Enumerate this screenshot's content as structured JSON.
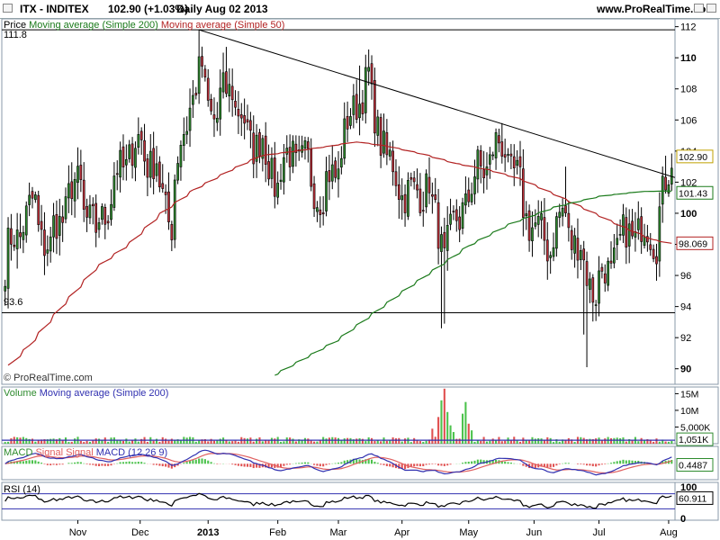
{
  "header": {
    "symbol": "ITX - INDITEX",
    "price": "102.90 (+1.03%)",
    "period": "Daily  Aug 02 2013",
    "site": "www.ProRealTime.com"
  },
  "watermark": "© ProRealTime.com",
  "colors": {
    "bull": "#2e8b2e",
    "bear": "#c0303a",
    "ma200": "#1a7a1a",
    "ma50": "#b22222",
    "macd": "#3030b0",
    "signal": "#e06060",
    "rsi": "#000000"
  },
  "chart_data": [
    {
      "type": "candlestick",
      "panel": "price",
      "legend": [
        {
          "text": "Price",
          "color": "#000000"
        },
        {
          "text": "Moving average (Simple 200)",
          "color": "#1a7a1a"
        },
        {
          "text": "Moving average (Simple 50)",
          "color": "#b22222"
        }
      ],
      "ylim": [
        89,
        112.5
      ],
      "y_ticks": [
        90,
        92,
        94,
        96,
        98,
        100,
        102,
        104,
        106,
        108,
        110,
        112
      ],
      "y_tick_labels": [
        "90",
        "92",
        "94",
        "96",
        "98",
        "100",
        "102",
        "104",
        "106",
        "108",
        "110",
        "112"
      ],
      "last_price": "102.90",
      "ma200_value": "101.43",
      "ma50_value": "98.069",
      "horizontal_lines": [
        {
          "label": "111.8",
          "value": 111.8
        },
        {
          "label": "93.6",
          "value": 93.6
        }
      ],
      "trendline": [
        {
          "date": "2012-12-27",
          "value": 111.8
        },
        {
          "date": "2013-08-06",
          "value": 102.3
        }
      ],
      "price_path": [
        [
          "2012-09-28",
          96.5
        ],
        [
          "2012-10-05",
          99.0
        ],
        [
          "2012-10-12",
          100.5
        ],
        [
          "2012-10-19",
          97.5
        ],
        [
          "2012-10-26",
          100.5
        ],
        [
          "2012-11-02",
          102.0
        ],
        [
          "2012-11-09",
          98.5
        ],
        [
          "2012-11-16",
          101.0
        ],
        [
          "2012-11-23",
          103.5
        ],
        [
          "2012-11-30",
          104.5
        ],
        [
          "2012-12-07",
          103.0
        ],
        [
          "2012-12-14",
          99.5
        ],
        [
          "2012-12-21",
          106.0
        ],
        [
          "2012-12-28",
          109.0
        ],
        [
          "2013-01-04",
          106.0
        ],
        [
          "2013-01-11",
          108.5
        ],
        [
          "2013-01-18",
          105.0
        ],
        [
          "2013-01-25",
          104.5
        ],
        [
          "2013-02-01",
          102.0
        ],
        [
          "2013-02-08",
          104.0
        ],
        [
          "2013-02-15",
          103.0
        ],
        [
          "2013-02-22",
          101.0
        ],
        [
          "2013-03-01",
          103.0
        ],
        [
          "2013-03-08",
          106.5
        ],
        [
          "2013-03-15",
          108.5
        ],
        [
          "2013-03-22",
          104.5
        ],
        [
          "2013-03-29",
          102.0
        ],
        [
          "2013-04-05",
          101.0
        ],
        [
          "2013-04-12",
          102.0
        ],
        [
          "2013-04-19",
          97.5
        ],
        [
          "2013-04-26",
          99.5
        ],
        [
          "2013-05-03",
          102.0
        ],
        [
          "2013-05-10",
          103.5
        ],
        [
          "2013-05-17",
          104.5
        ],
        [
          "2013-05-24",
          101.5
        ],
        [
          "2013-05-31",
          99.0
        ],
        [
          "2013-06-07",
          98.0
        ],
        [
          "2013-06-14",
          100.0
        ],
        [
          "2013-06-21",
          97.5
        ],
        [
          "2013-06-28",
          95.0
        ],
        [
          "2013-07-05",
          96.5
        ],
        [
          "2013-07-12",
          98.5
        ],
        [
          "2013-07-19",
          99.0
        ],
        [
          "2013-07-26",
          98.5
        ],
        [
          "2013-08-02",
          102.9
        ]
      ],
      "ma200_path": [
        [
          "2013-01-30",
          89.5
        ],
        [
          "2013-03-01",
          91.8
        ],
        [
          "2013-04-01",
          95.0
        ],
        [
          "2013-05-01",
          97.9
        ],
        [
          "2013-05-20",
          99.3
        ],
        [
          "2013-06-10",
          100.4
        ],
        [
          "2013-07-01",
          101.1
        ],
        [
          "2013-07-20",
          101.4
        ],
        [
          "2013-08-02",
          101.43
        ]
      ],
      "ma50_path": [
        [
          "2012-09-28",
          89.8
        ],
        [
          "2012-10-10",
          91.5
        ],
        [
          "2012-10-25",
          94.0
        ],
        [
          "2012-11-10",
          96.5
        ],
        [
          "2012-11-25",
          98.0
        ],
        [
          "2012-12-10",
          100.0
        ],
        [
          "2012-12-25",
          101.5
        ],
        [
          "2013-01-10",
          102.7
        ],
        [
          "2013-01-25",
          103.7
        ],
        [
          "2013-02-10",
          104.0
        ],
        [
          "2013-02-25",
          104.3
        ],
        [
          "2013-03-10",
          104.6
        ],
        [
          "2013-03-25",
          104.3
        ],
        [
          "2013-04-10",
          103.8
        ],
        [
          "2013-04-25",
          103.2
        ],
        [
          "2013-05-10",
          102.8
        ],
        [
          "2013-05-25",
          102.2
        ],
        [
          "2013-06-10",
          101.2
        ],
        [
          "2013-06-25",
          100.2
        ],
        [
          "2013-07-10",
          99.2
        ],
        [
          "2013-07-25",
          98.3
        ],
        [
          "2013-08-02",
          98.069
        ]
      ],
      "x_ticks": [
        {
          "label": "Nov",
          "date": "2012-11-01"
        },
        {
          "label": "Dec",
          "date": "2012-12-01"
        },
        {
          "label": "2013",
          "date": "2013-01-01"
        },
        {
          "label": "Feb",
          "date": "2013-02-01"
        },
        {
          "label": "Mar",
          "date": "2013-03-01"
        },
        {
          "label": "Apr",
          "date": "2013-04-01"
        },
        {
          "label": "May",
          "date": "2013-05-01"
        },
        {
          "label": "Jun",
          "date": "2013-06-01"
        },
        {
          "label": "Jul",
          "date": "2013-07-01"
        },
        {
          "label": "Aug",
          "date": "2013-08-01"
        }
      ]
    },
    {
      "type": "bar",
      "panel": "volume",
      "legend": [
        {
          "text": "Volume",
          "color": "#2e8b2e"
        },
        {
          "text": "Moving average (Simple 200)",
          "color": "#3030b0"
        }
      ],
      "y_ticks": [
        5000000,
        10000000,
        15000000
      ],
      "y_tick_labels": [
        "5,000K",
        "10M",
        "15M"
      ],
      "ylim": [
        0,
        17000000
      ],
      "last_value": "1,051K",
      "average": 1051000,
      "spikes": [
        {
          "date": "2013-04-15",
          "value": 4500000
        },
        {
          "date": "2013-04-17",
          "value": 8000000
        },
        {
          "date": "2013-04-18",
          "value": 13000000
        },
        {
          "date": "2013-04-19",
          "value": 16500000
        },
        {
          "date": "2013-04-22",
          "value": 9500000
        },
        {
          "date": "2013-04-23",
          "value": 5500000
        },
        {
          "date": "2013-04-24",
          "value": 3500000
        },
        {
          "date": "2013-04-29",
          "value": 9000000
        },
        {
          "date": "2013-04-30",
          "value": 12500000
        },
        {
          "date": "2013-05-01",
          "value": 6000000
        },
        {
          "date": "2013-05-02",
          "value": 4000000
        }
      ]
    },
    {
      "type": "line",
      "panel": "macd",
      "legend": [
        {
          "text": "MACD",
          "color": "#2e8b2e"
        },
        {
          "text": "Signal",
          "color": "#e06060"
        },
        {
          "text": "Signal",
          "color": "#e06060"
        },
        {
          "text": "MACD (12 26 9)",
          "color": "#3030b0"
        }
      ],
      "last_value": "0.4487",
      "ylim": [
        -2.2,
        2.4
      ]
    },
    {
      "type": "line",
      "panel": "rsi",
      "legend": [
        {
          "text": "RSI (14)",
          "color": "#000000"
        }
      ],
      "y_ticks": [
        0,
        100
      ],
      "y_tick_labels": [
        "0",
        "100"
      ],
      "ylim": [
        0,
        100
      ],
      "levels": [
        30,
        70
      ],
      "last_value": "60.911"
    }
  ]
}
